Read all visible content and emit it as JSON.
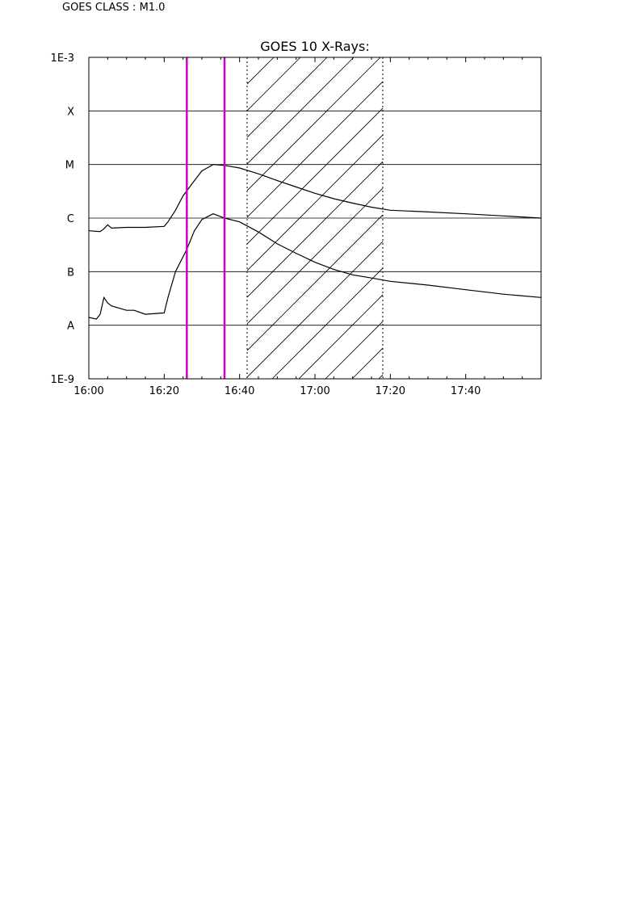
{
  "header": {
    "goes_class_label": "GOES CLASS : M1.0"
  },
  "chart_data": {
    "type": "line",
    "title": "GOES 10 X-Rays:",
    "xlabel": "",
    "ylabel": "",
    "xlim": [
      "16:00",
      "18:00"
    ],
    "ylim": [
      1e-09,
      0.001
    ],
    "yscale": "log",
    "grid": "horizontal",
    "x_ticks": [
      "16:00",
      "16:20",
      "16:40",
      "17:00",
      "17:20",
      "17:40"
    ],
    "y_ticks": [
      {
        "value": 0.001,
        "label": "1E-3"
      },
      {
        "value": 0.0001,
        "label": "X"
      },
      {
        "value": 1e-05,
        "label": "M"
      },
      {
        "value": 1e-06,
        "label": "C"
      },
      {
        "value": 1e-07,
        "label": "B"
      },
      {
        "value": 1e-08,
        "label": "A"
      },
      {
        "value": 1e-09,
        "label": "1E-9"
      }
    ],
    "series": [
      {
        "x": [
          "16:00",
          "16:03",
          "16:04",
          "16:05",
          "16:06",
          "16:10",
          "16:15",
          "16:20",
          "16:21",
          "16:23",
          "16:25",
          "16:28",
          "16:30",
          "16:33",
          "16:36",
          "16:40",
          "16:45",
          "16:50",
          "16:55",
          "17:00",
          "17:05",
          "17:10",
          "17:15",
          "17:20",
          "17:30",
          "17:40",
          "17:50",
          "18:00"
        ],
        "y": [
          5.8e-07,
          5.6e-07,
          6.3e-07,
          7.5e-07,
          6.5e-07,
          6.7e-07,
          6.7e-07,
          7e-07,
          8.5e-07,
          1.4e-06,
          2.6e-06,
          5e-06,
          7.6e-06,
          1e-05,
          9.6e-06,
          8.6e-06,
          6.7e-06,
          5e-06,
          3.8e-06,
          2.9e-06,
          2.3e-06,
          1.9e-06,
          1.6e-06,
          1.4e-06,
          1.3e-06,
          1.2e-06,
          1.1e-06,
          1e-06
        ]
      },
      {
        "x": [
          "16:00",
          "16:02",
          "16:03",
          "16:04",
          "16:05",
          "16:06",
          "16:10",
          "16:12",
          "16:15",
          "16:20",
          "16:21",
          "16:23",
          "16:26",
          "16:28",
          "16:30",
          "16:33",
          "16:36",
          "16:40",
          "16:45",
          "16:50",
          "16:55",
          "17:00",
          "17:05",
          "17:10",
          "17:15",
          "17:20",
          "17:30",
          "17:40",
          "17:50",
          "18:00"
        ],
        "y": [
          1.4e-08,
          1.3e-08,
          1.6e-08,
          3.3e-08,
          2.6e-08,
          2.3e-08,
          1.9e-08,
          1.9e-08,
          1.6e-08,
          1.7e-08,
          3.3e-08,
          1e-07,
          2.6e-07,
          5.8e-07,
          9.4e-07,
          1.2e-06,
          1e-06,
          8.5e-07,
          5.5e-07,
          3.3e-07,
          2.2e-07,
          1.5e-07,
          1.1e-07,
          8.7e-08,
          7.6e-08,
          6.6e-08,
          5.6e-08,
          4.6e-08,
          3.8e-08,
          3.3e-08
        ]
      }
    ],
    "markers": [
      "16:26",
      "16:36"
    ],
    "hatched_interval": [
      "16:42",
      "17:18"
    ],
    "colors": {
      "curves": "#000000",
      "markers": "#cc00cc",
      "grid": "#000000"
    }
  }
}
